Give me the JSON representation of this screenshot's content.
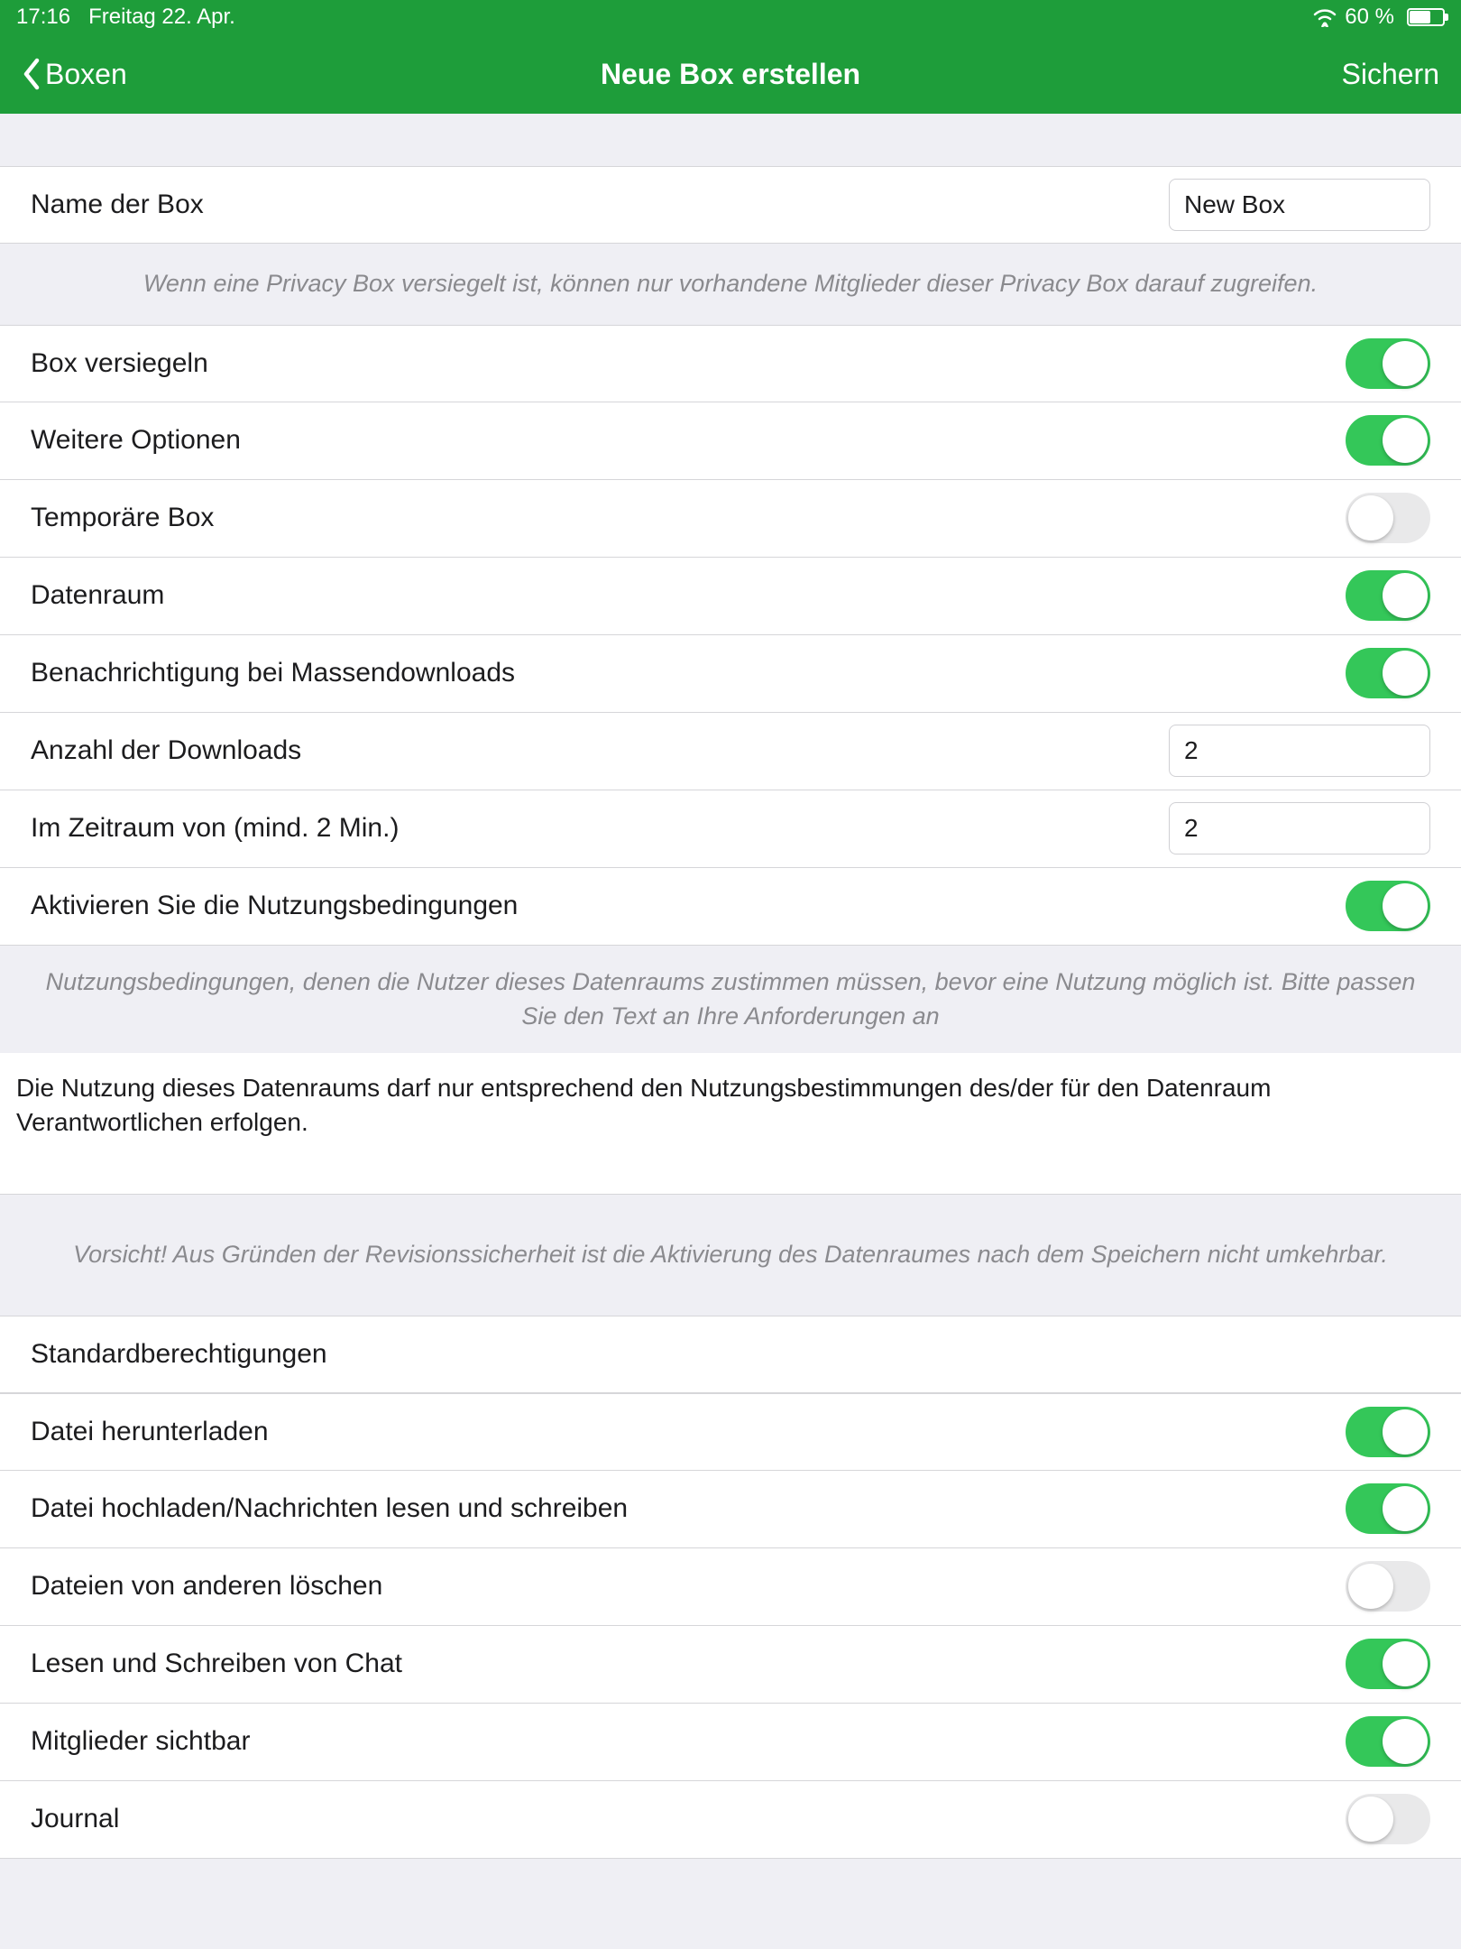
{
  "colors": {
    "green": "#1e9d3a",
    "toggle_on": "#34c759",
    "toggle_off": "#e9e9ea",
    "bg": "#efeff4",
    "note_text": "#8a8a8e"
  },
  "status": {
    "time": "17:16",
    "date": "Freitag 22. Apr.",
    "battery_pct": "60 %",
    "battery_fill_pct": 60
  },
  "nav": {
    "back_label": "Boxen",
    "title": "Neue Box erstellen",
    "save_label": "Sichern"
  },
  "box_name": {
    "label": "Name der Box",
    "value": "New Box"
  },
  "sealed_note": "Wenn eine Privacy Box versiegelt ist, können nur vorhandene Mitglieder dieser Privacy Box darauf zugreifen.",
  "options": [
    {
      "key": "seal",
      "label": "Box versiegeln",
      "type": "toggle",
      "on": true
    },
    {
      "key": "more",
      "label": "Weitere Optionen",
      "type": "toggle",
      "on": true
    },
    {
      "key": "temp",
      "label": "Temporäre Box",
      "type": "toggle",
      "on": false
    },
    {
      "key": "dataroom",
      "label": "Datenraum",
      "type": "toggle",
      "on": true
    },
    {
      "key": "massnotice",
      "label": "Benachrichtigung bei Massendownloads",
      "type": "toggle",
      "on": true
    },
    {
      "key": "dlcount",
      "label": "Anzahl der Downloads",
      "type": "input",
      "value": "2"
    },
    {
      "key": "dlwindow",
      "label": "Im Zeitraum von (mind. 2 Min.)",
      "type": "input",
      "value": "2"
    },
    {
      "key": "terms_en",
      "label": "Aktivieren Sie die Nutzungsbedingungen",
      "type": "toggle",
      "on": true
    }
  ],
  "terms_note": "Nutzungsbedingungen, denen die Nutzer dieses Datenraums zustimmen müssen, bevor eine Nutzung möglich ist. Bitte passen Sie den Text an Ihre Anforderungen an",
  "terms_text": "Die Nutzung dieses Datenraums darf nur entsprechend den Nutzungsbestimmungen des/der für den Datenraum Verantwortlichen erfolgen.",
  "warning_note": "Vorsicht! Aus Gründen der Revisionssicherheit ist die Aktivierung des Datenraumes nach dem Speichern nicht umkehrbar.",
  "perms_heading": "Standardberechtigungen",
  "permissions": [
    {
      "key": "download",
      "label": "Datei herunterladen",
      "on": true
    },
    {
      "key": "upload",
      "label": "Datei hochladen/Nachrichten lesen und schreiben",
      "on": true
    },
    {
      "key": "delete",
      "label": "Dateien von anderen löschen",
      "on": false
    },
    {
      "key": "chat",
      "label": "Lesen und Schreiben von Chat",
      "on": true
    },
    {
      "key": "members",
      "label": "Mitglieder sichtbar",
      "on": true
    },
    {
      "key": "journal",
      "label": "Journal",
      "on": false
    }
  ]
}
